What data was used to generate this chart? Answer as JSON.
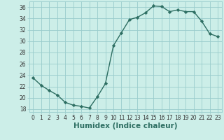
{
  "x": [
    0,
    1,
    2,
    3,
    4,
    5,
    6,
    7,
    8,
    9,
    10,
    11,
    12,
    13,
    14,
    15,
    16,
    17,
    18,
    19,
    20,
    21,
    22,
    23
  ],
  "y": [
    23.5,
    22.2,
    21.3,
    20.5,
    19.2,
    18.7,
    18.5,
    18.2,
    20.2,
    22.5,
    29.2,
    31.5,
    33.8,
    34.2,
    35.0,
    36.2,
    36.1,
    35.2,
    35.5,
    35.2,
    35.2,
    33.5,
    31.3,
    30.8
  ],
  "xlabel": "Humidex (Indice chaleur)",
  "ylim": [
    17.5,
    37.0
  ],
  "xlim": [
    -0.5,
    23.5
  ],
  "yticks": [
    18,
    20,
    22,
    24,
    26,
    28,
    30,
    32,
    34,
    36
  ],
  "xticks": [
    0,
    1,
    2,
    3,
    4,
    5,
    6,
    7,
    8,
    9,
    10,
    11,
    12,
    13,
    14,
    15,
    16,
    17,
    18,
    19,
    20,
    21,
    22,
    23
  ],
  "line_color": "#2d6e62",
  "marker": "D",
  "marker_size": 2.2,
  "bg_color": "#cceee8",
  "grid_color": "#99cccc",
  "tick_fontsize": 5.5,
  "xlabel_fontsize": 7.5,
  "linewidth": 1.0
}
